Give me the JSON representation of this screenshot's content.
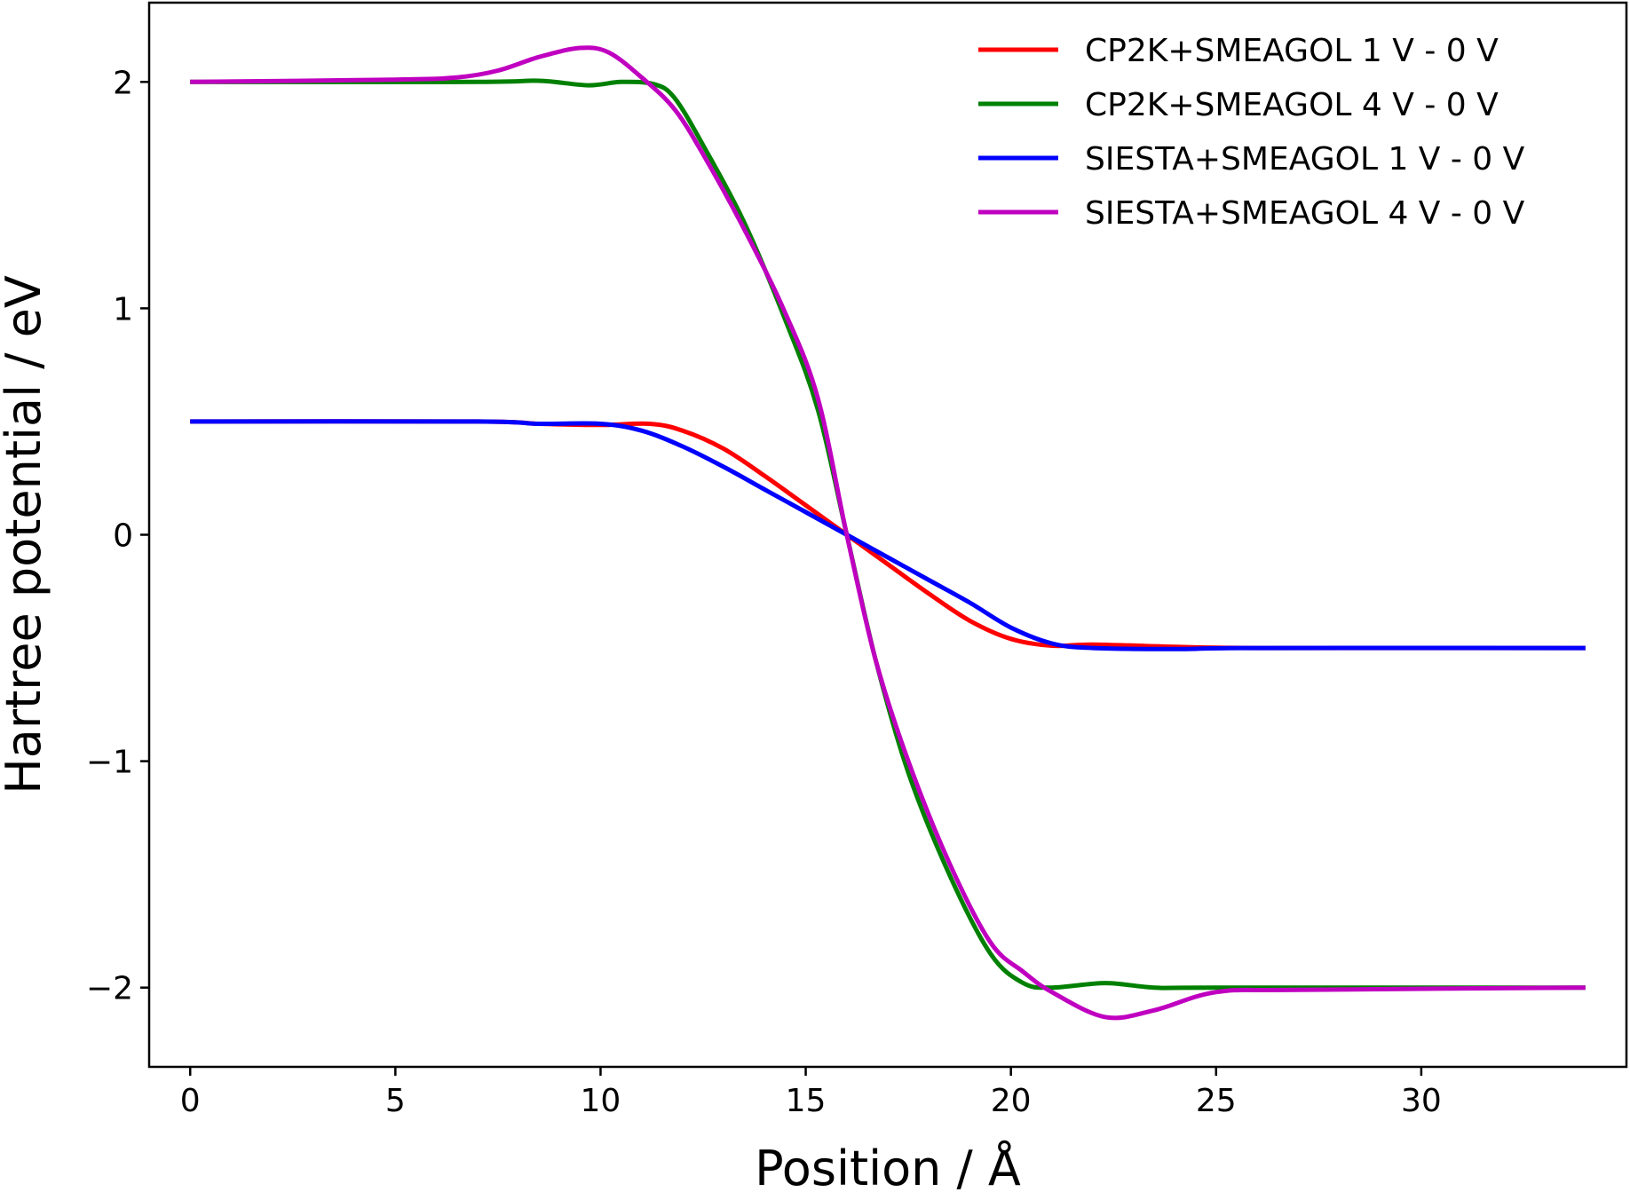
{
  "chart_data": {
    "type": "line",
    "title": "",
    "xlabel": "Position / Å",
    "ylabel": "Hartree potential / eV",
    "xlim": [
      -1,
      35
    ],
    "ylim": [
      -2.35,
      2.35
    ],
    "xticks": [
      0,
      5,
      10,
      15,
      20,
      25,
      30
    ],
    "xtick_labels": [
      "0",
      "5",
      "10",
      "15",
      "20",
      "25",
      "30"
    ],
    "yticks": [
      -2,
      -1,
      0,
      1,
      2
    ],
    "ytick_labels": [
      "−2",
      "−1",
      "0",
      "1",
      "2"
    ],
    "grid": false,
    "legend_position": "top-right",
    "series": [
      {
        "name": "CP2K+SMEAGOL 1 V - 0 V",
        "color": "#ff0000",
        "points": [
          [
            0,
            0.5
          ],
          [
            7,
            0.5
          ],
          [
            8.5,
            0.49
          ],
          [
            10,
            0.485
          ],
          [
            11.2,
            0.49
          ],
          [
            12,
            0.46
          ],
          [
            13,
            0.38
          ],
          [
            14,
            0.26
          ],
          [
            15,
            0.13
          ],
          [
            16,
            0.0
          ],
          [
            17,
            -0.13
          ],
          [
            18,
            -0.26
          ],
          [
            19,
            -0.38
          ],
          [
            20,
            -0.46
          ],
          [
            21,
            -0.49
          ],
          [
            22,
            -0.485
          ],
          [
            24,
            -0.495
          ],
          [
            26,
            -0.5
          ],
          [
            34,
            -0.5
          ]
        ]
      },
      {
        "name": "CP2K+SMEAGOL 4 V - 0 V",
        "color": "#008000",
        "points": [
          [
            0,
            2.0
          ],
          [
            7,
            2.0
          ],
          [
            8.5,
            2.005
          ],
          [
            9.7,
            1.985
          ],
          [
            10.5,
            2.0
          ],
          [
            11.3,
            1.99
          ],
          [
            11.8,
            1.93
          ],
          [
            12.5,
            1.72
          ],
          [
            13.5,
            1.38
          ],
          [
            14.5,
            0.95
          ],
          [
            15.3,
            0.55
          ],
          [
            16,
            0.0
          ],
          [
            16.7,
            -0.55
          ],
          [
            17.5,
            -1.05
          ],
          [
            18.5,
            -1.5
          ],
          [
            19.5,
            -1.85
          ],
          [
            20.3,
            -1.98
          ],
          [
            21,
            -2.0
          ],
          [
            22.3,
            -1.98
          ],
          [
            23.5,
            -2.0
          ],
          [
            25,
            -2.0
          ],
          [
            34,
            -2.0
          ]
        ]
      },
      {
        "name": "SIESTA+SMEAGOL 1 V - 0 V",
        "color": "#0000ff",
        "points": [
          [
            0,
            0.5
          ],
          [
            7,
            0.5
          ],
          [
            8.5,
            0.49
          ],
          [
            10,
            0.49
          ],
          [
            11,
            0.46
          ],
          [
            12,
            0.39
          ],
          [
            13,
            0.3
          ],
          [
            14,
            0.2
          ],
          [
            15,
            0.1
          ],
          [
            16,
            0.0
          ],
          [
            17,
            -0.1
          ],
          [
            18,
            -0.2
          ],
          [
            19,
            -0.3
          ],
          [
            20,
            -0.41
          ],
          [
            21,
            -0.48
          ],
          [
            22,
            -0.5
          ],
          [
            24,
            -0.505
          ],
          [
            26,
            -0.5
          ],
          [
            34,
            -0.5
          ]
        ]
      },
      {
        "name": "SIESTA+SMEAGOL 4 V - 0 V",
        "color": "#c000c0",
        "points": [
          [
            0,
            2.0
          ],
          [
            5,
            2.01
          ],
          [
            6.5,
            2.02
          ],
          [
            7.5,
            2.05
          ],
          [
            8.5,
            2.11
          ],
          [
            9.5,
            2.15
          ],
          [
            10.2,
            2.13
          ],
          [
            11,
            2.02
          ],
          [
            11.8,
            1.88
          ],
          [
            12.5,
            1.68
          ],
          [
            13.5,
            1.35
          ],
          [
            14.5,
            0.98
          ],
          [
            15.3,
            0.6
          ],
          [
            16,
            0.0
          ],
          [
            16.7,
            -0.55
          ],
          [
            17.5,
            -1.0
          ],
          [
            18.5,
            -1.45
          ],
          [
            19.5,
            -1.8
          ],
          [
            20.3,
            -1.93
          ],
          [
            21,
            -2.02
          ],
          [
            22.3,
            -2.13
          ],
          [
            23.5,
            -2.1
          ],
          [
            25,
            -2.02
          ],
          [
            27,
            -2.01
          ],
          [
            34,
            -2.0
          ]
        ]
      }
    ]
  }
}
